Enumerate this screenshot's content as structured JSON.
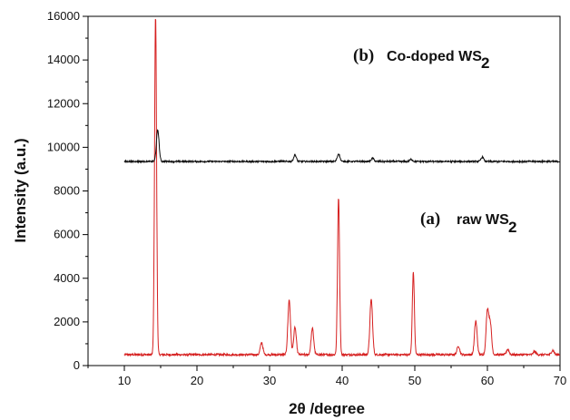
{
  "chart_data": {
    "type": "line",
    "xlabel": "2θ /degree",
    "ylabel": "Intensity (a.u.)",
    "xlim": [
      5,
      70
    ],
    "ylim": [
      0,
      16000
    ],
    "x_ticks": [
      10,
      20,
      30,
      40,
      50,
      60,
      70
    ],
    "y_ticks": [
      0,
      2000,
      4000,
      6000,
      8000,
      10000,
      12000,
      14000,
      16000
    ],
    "grid": false,
    "series": [
      {
        "label": "(a) raw WS2",
        "color": "#d62020",
        "baseline": 500,
        "x_range": [
          10,
          70
        ],
        "peaks": [
          {
            "x": 14.3,
            "y": 16000
          },
          {
            "x": 28.9,
            "y": 1050
          },
          {
            "x": 32.7,
            "y": 3000
          },
          {
            "x": 33.5,
            "y": 1750
          },
          {
            "x": 35.9,
            "y": 1700
          },
          {
            "x": 39.5,
            "y": 7700
          },
          {
            "x": 44.0,
            "y": 3050
          },
          {
            "x": 49.8,
            "y": 4300
          },
          {
            "x": 56.0,
            "y": 900
          },
          {
            "x": 58.4,
            "y": 2050
          },
          {
            "x": 60.0,
            "y": 2500
          },
          {
            "x": 60.4,
            "y": 1900
          },
          {
            "x": 62.8,
            "y": 750
          },
          {
            "x": 66.5,
            "y": 650
          },
          {
            "x": 69.0,
            "y": 700
          }
        ]
      },
      {
        "label": "(b) Co-doped WS2",
        "color": "#111111",
        "baseline": 9350,
        "x_range": [
          10,
          70
        ],
        "peaks": [
          {
            "x": 14.6,
            "y": 10800
          },
          {
            "x": 33.5,
            "y": 9650
          },
          {
            "x": 39.5,
            "y": 9700
          },
          {
            "x": 44.2,
            "y": 9500
          },
          {
            "x": 49.5,
            "y": 9450
          },
          {
            "x": 59.3,
            "y": 9550
          }
        ]
      }
    ],
    "annotations": [
      {
        "prefix": "(a)",
        "text": "raw WS",
        "sub": "2"
      },
      {
        "prefix": "(b)",
        "text": "Co-doped WS",
        "sub": "2"
      }
    ]
  }
}
